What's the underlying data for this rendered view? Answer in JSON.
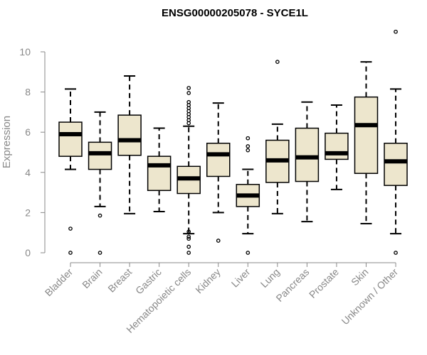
{
  "chart_data": {
    "type": "box",
    "title": "ENSG00000205078 - SYCE1L",
    "xlabel": "",
    "ylabel": "Expression",
    "ylim": [
      0,
      11
    ],
    "yticks": [
      0,
      2,
      4,
      6,
      8,
      10
    ],
    "colors": {
      "box_fill": "#ede6cd",
      "stroke": "#000000",
      "axis": "#888888",
      "title": "#000000"
    },
    "categories": [
      "Bladder",
      "Brain",
      "Breast",
      "Gastric",
      "Hematopoietic cells",
      "Kidney",
      "Liver",
      "Lung",
      "Pancreas",
      "Prostate",
      "Skin",
      "Unknown / Other"
    ],
    "boxes": [
      {
        "q1": 4.8,
        "median": 5.9,
        "q3": 6.5,
        "whisker_low": 4.15,
        "whisker_high": 8.15,
        "outliers": [
          1.2,
          0
        ]
      },
      {
        "q1": 4.15,
        "median": 4.95,
        "q3": 5.5,
        "whisker_low": 2.3,
        "whisker_high": 7.0,
        "outliers": [
          1.85,
          0
        ]
      },
      {
        "q1": 4.85,
        "median": 5.6,
        "q3": 6.85,
        "whisker_low": 1.95,
        "whisker_high": 8.8,
        "outliers": []
      },
      {
        "q1": 3.1,
        "median": 4.35,
        "q3": 4.8,
        "whisker_low": 2.05,
        "whisker_high": 6.2,
        "outliers": []
      },
      {
        "q1": 2.95,
        "median": 3.7,
        "q3": 4.3,
        "whisker_low": 0.95,
        "whisker_high": 6.3,
        "outliers": [
          8.2,
          7.95,
          7.5,
          7.35,
          7.2,
          7.05,
          6.9,
          6.75,
          6.6,
          6.45,
          1.05,
          0.8,
          0.7,
          0.3,
          0
        ]
      },
      {
        "q1": 3.8,
        "median": 4.9,
        "q3": 5.45,
        "whisker_low": 2.0,
        "whisker_high": 7.45,
        "outliers": [
          0.6
        ]
      },
      {
        "q1": 2.3,
        "median": 2.85,
        "q3": 3.4,
        "whisker_low": 0.95,
        "whisker_high": 4.15,
        "outliers": [
          5.7,
          5.3,
          5.1,
          0
        ]
      },
      {
        "q1": 3.5,
        "median": 4.6,
        "q3": 5.6,
        "whisker_low": 1.95,
        "whisker_high": 6.4,
        "outliers": [
          9.5
        ]
      },
      {
        "q1": 3.55,
        "median": 4.75,
        "q3": 6.2,
        "whisker_low": 1.55,
        "whisker_high": 7.5,
        "outliers": []
      },
      {
        "q1": 4.65,
        "median": 4.95,
        "q3": 5.95,
        "whisker_low": 3.15,
        "whisker_high": 7.35,
        "outliers": []
      },
      {
        "q1": 3.95,
        "median": 6.35,
        "q3": 7.75,
        "whisker_low": 1.45,
        "whisker_high": 9.5,
        "outliers": []
      },
      {
        "q1": 3.35,
        "median": 4.55,
        "q3": 5.45,
        "whisker_low": 0.95,
        "whisker_high": 8.15,
        "outliers": [
          11.0,
          0
        ]
      }
    ]
  }
}
